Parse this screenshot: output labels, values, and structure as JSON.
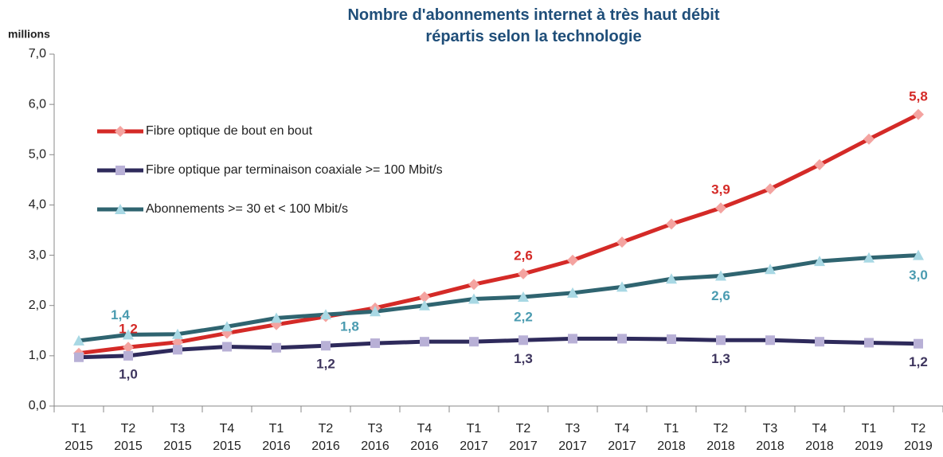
{
  "chart_data": {
    "type": "line",
    "title": [
      "Nombre d'abonnements internet à très haut débit",
      "répartis selon la technologie"
    ],
    "y_label": "millions",
    "categories": [
      "T1 2015",
      "T2 2015",
      "T3 2015",
      "T4 2015",
      "T1 2016",
      "T2 2016",
      "T3 2016",
      "T4 2016",
      "T1 2017",
      "T2 2017",
      "T3 2017",
      "T4 2017",
      "T1 2018",
      "T2 2018",
      "T3 2018",
      "T4 2018",
      "T1 2019",
      "T2 2019"
    ],
    "series": [
      {
        "name": "Fibre optique de bout en bout",
        "color": "#d42a27",
        "marker_color": "#f4a3a0",
        "marker": "diamond",
        "label_color": "#d42a27",
        "values": [
          1.05,
          1.17,
          1.27,
          1.45,
          1.62,
          1.78,
          1.95,
          2.17,
          2.42,
          2.63,
          2.9,
          3.26,
          3.62,
          3.94,
          4.32,
          4.8,
          5.31,
          5.8
        ],
        "value_labels": [
          null,
          "1,2",
          null,
          null,
          null,
          null,
          null,
          null,
          null,
          "2,6",
          null,
          null,
          null,
          "3,9",
          null,
          null,
          null,
          "5,8"
        ]
      },
      {
        "name": "Fibre optique par terminaison coaxiale >= 100 Mbit/s",
        "color": "#2e2a5b",
        "marker_color": "#b8b0d6",
        "marker": "square",
        "label_color": "#3e355e",
        "values": [
          0.97,
          1.0,
          1.12,
          1.18,
          1.16,
          1.2,
          1.25,
          1.28,
          1.28,
          1.31,
          1.34,
          1.34,
          1.33,
          1.31,
          1.31,
          1.28,
          1.26,
          1.24
        ],
        "value_labels": [
          null,
          "1,0",
          null,
          null,
          null,
          "1,2",
          null,
          null,
          null,
          "1,3",
          null,
          null,
          null,
          "1,3",
          null,
          null,
          null,
          "1,2"
        ]
      },
      {
        "name": "Abonnements >= 30 et < 100 Mbit/s",
        "color": "#2f6470",
        "marker_color": "#a8d8e4",
        "marker": "triangle",
        "label_color": "#4a9bb0",
        "values": [
          1.3,
          1.42,
          1.43,
          1.58,
          1.75,
          1.82,
          1.88,
          2.0,
          2.13,
          2.17,
          2.25,
          2.37,
          2.53,
          2.59,
          2.72,
          2.88,
          2.95,
          3.0
        ],
        "value_labels": [
          null,
          "1,4",
          null,
          null,
          null,
          "1,8",
          null,
          null,
          null,
          "2,2",
          null,
          null,
          null,
          "2,6",
          null,
          null,
          null,
          "3,0"
        ]
      }
    ],
    "ylim": [
      0,
      7
    ],
    "yticks": [
      {
        "value": 0,
        "label": "0,0"
      },
      {
        "value": 1,
        "label": "1,0"
      },
      {
        "value": 2,
        "label": "2,0"
      },
      {
        "value": 3,
        "label": "3,0"
      },
      {
        "value": 4,
        "label": "4,0"
      },
      {
        "value": 5,
        "label": "5,0"
      },
      {
        "value": 6,
        "label": "6,0"
      },
      {
        "value": 7,
        "label": "7,0"
      }
    ],
    "legend": "upper left"
  }
}
